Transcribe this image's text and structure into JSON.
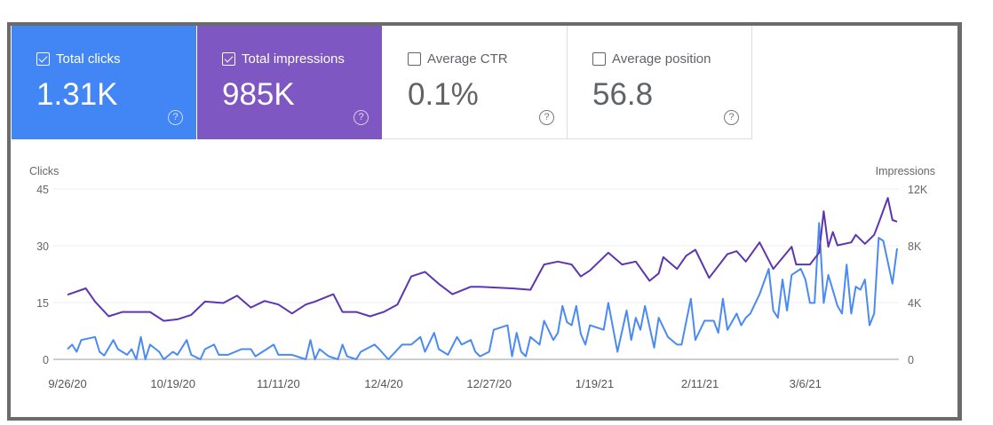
{
  "cards": [
    {
      "label": "Total clicks",
      "value": "1.31K",
      "checked": true,
      "color": "#4285f4"
    },
    {
      "label": "Total impressions",
      "value": "985K",
      "checked": true,
      "color": "#7e57c2"
    },
    {
      "label": "Average CTR",
      "value": "0.1%",
      "checked": false
    },
    {
      "label": "Average position",
      "value": "56.8",
      "checked": false
    }
  ],
  "help_glyph": "?",
  "chart_data": {
    "type": "line",
    "left_axis": {
      "label": "Clicks",
      "ticks": [
        "0",
        "15",
        "30",
        "45"
      ],
      "range": [
        0,
        45
      ]
    },
    "right_axis": {
      "label": "Impressions",
      "ticks": [
        "0",
        "4K",
        "8K",
        "12K"
      ],
      "range": [
        0,
        12000
      ]
    },
    "x_ticks": [
      "9/26/20",
      "10/19/20",
      "11/11/20",
      "12/4/20",
      "12/27/20",
      "1/19/21",
      "2/11/21",
      "3/6/21"
    ],
    "grid": true,
    "series": [
      {
        "axis": "left",
        "color": "#4a8af4",
        "points": [
          [
            "9/26/20",
            2.7
          ],
          [
            "9/27/20",
            3.9
          ],
          [
            "9/28/20",
            2
          ],
          [
            "9/29/20",
            5.1
          ],
          [
            "10/2/20",
            5.9
          ],
          [
            "10/3/20",
            2
          ],
          [
            "10/4/20",
            1
          ],
          [
            "10/6/20",
            5.1
          ],
          [
            "10/7/20",
            2.7
          ],
          [
            "10/9/20",
            1.2
          ],
          [
            "10/10/20",
            2.7
          ],
          [
            "10/11/20",
            0
          ],
          [
            "10/12/20",
            5.9
          ],
          [
            "10/13/20",
            0
          ],
          [
            "10/14/20",
            3.9
          ],
          [
            "10/16/20",
            2
          ],
          [
            "10/17/20",
            0
          ],
          [
            "10/19/20",
            2
          ],
          [
            "10/20/20",
            1.2
          ],
          [
            "10/22/20",
            5.1
          ],
          [
            "10/23/20",
            1.2
          ],
          [
            "10/25/20",
            0
          ],
          [
            "10/26/20",
            2.7
          ],
          [
            "10/28/20",
            3.9
          ],
          [
            "10/29/20",
            1.2
          ],
          [
            "10/31/20",
            1.2
          ],
          [
            "11/3/20",
            2.7
          ],
          [
            "11/5/20",
            2.7
          ],
          [
            "11/6/20",
            0.8
          ],
          [
            "11/10/20",
            3.9
          ],
          [
            "11/11/20",
            1.2
          ],
          [
            "11/14/20",
            1.2
          ],
          [
            "11/17/20",
            0
          ],
          [
            "11/18/20",
            5.1
          ],
          [
            "11/19/20",
            0
          ],
          [
            "11/20/20",
            2.7
          ],
          [
            "11/22/20",
            0.8
          ],
          [
            "11/24/20",
            0
          ],
          [
            "11/25/20",
            3.9
          ],
          [
            "11/26/20",
            0.8
          ],
          [
            "11/28/20",
            0
          ],
          [
            "11/29/20",
            2
          ],
          [
            "12/2/20",
            3.9
          ],
          [
            "12/3/20",
            2.7
          ],
          [
            "12/5/20",
            0
          ],
          [
            "12/8/20",
            3.9
          ],
          [
            "12/10/20",
            3.9
          ],
          [
            "12/12/20",
            5.9
          ],
          [
            "12/13/20",
            2
          ],
          [
            "12/15/20",
            7
          ],
          [
            "12/16/20",
            2.7
          ],
          [
            "12/18/20",
            1.2
          ],
          [
            "12/20/20",
            5.9
          ],
          [
            "12/21/20",
            3.9
          ],
          [
            "12/23/20",
            5.1
          ],
          [
            "12/24/20",
            2
          ],
          [
            "12/25/20",
            0.8
          ],
          [
            "12/27/20",
            2
          ],
          [
            "12/28/20",
            7.8
          ],
          [
            "12/31/20",
            9
          ],
          [
            "1/1/21",
            0.8
          ],
          [
            "1/2/21",
            7
          ],
          [
            "1/3/21",
            2
          ],
          [
            "1/4/21",
            0.8
          ],
          [
            "1/5/21",
            5.9
          ],
          [
            "1/7/21",
            3.9
          ],
          [
            "1/8/21",
            10.2
          ],
          [
            "1/10/21",
            5.1
          ],
          [
            "1/11/21",
            7
          ],
          [
            "1/12/21",
            14.1
          ],
          [
            "1/13/21",
            9.8
          ],
          [
            "1/14/21",
            9
          ],
          [
            "1/15/21",
            14.1
          ],
          [
            "1/16/21",
            6.7
          ],
          [
            "1/17/21",
            3.9
          ],
          [
            "1/18/21",
            9
          ],
          [
            "1/21/21",
            7.8
          ],
          [
            "1/22/21",
            14.9
          ],
          [
            "1/24/21",
            2
          ],
          [
            "1/26/21",
            12.9
          ],
          [
            "1/27/21",
            5.1
          ],
          [
            "1/28/21",
            11
          ],
          [
            "1/29/21",
            7.8
          ],
          [
            "1/30/21",
            14.1
          ],
          [
            "2/1/21",
            3.1
          ],
          [
            "2/2/21",
            11
          ],
          [
            "2/4/21",
            5.9
          ],
          [
            "2/6/21",
            3.9
          ],
          [
            "2/7/21",
            3.9
          ],
          [
            "2/9/21",
            16
          ],
          [
            "2/10/21",
            5.1
          ],
          [
            "2/12/21",
            10.2
          ],
          [
            "2/14/21",
            10.2
          ],
          [
            "2/15/21",
            7
          ],
          [
            "2/16/21",
            16
          ],
          [
            "2/17/21",
            7.8
          ],
          [
            "2/19/21",
            12.1
          ],
          [
            "2/20/21",
            9
          ],
          [
            "2/21/21",
            11
          ],
          [
            "2/22/21",
            12.1
          ],
          [
            "2/24/21",
            17.2
          ],
          [
            "2/26/21",
            23.9
          ],
          [
            "2/27/21",
            12.9
          ],
          [
            "2/28/21",
            11
          ],
          [
            "3/1/21",
            21.1
          ],
          [
            "3/2/21",
            12.9
          ],
          [
            "3/3/21",
            22.3
          ],
          [
            "3/5/21",
            23.9
          ],
          [
            "3/6/21",
            21.1
          ],
          [
            "3/7/21",
            14.9
          ],
          [
            "3/8/21",
            14.9
          ],
          [
            "3/9/21",
            36
          ],
          [
            "3/10/21",
            14.9
          ],
          [
            "3/11/21",
            22.3
          ],
          [
            "3/13/21",
            14.1
          ],
          [
            "3/14/21",
            12.1
          ],
          [
            "3/15/21",
            25
          ],
          [
            "3/16/21",
            12.1
          ],
          [
            "3/17/21",
            19.2
          ],
          [
            "3/18/21",
            18.4
          ],
          [
            "3/19/21",
            21.1
          ],
          [
            "3/20/21",
            9
          ],
          [
            "3/21/21",
            12.1
          ],
          [
            "3/22/21",
            32.1
          ],
          [
            "3/23/21",
            31.3
          ],
          [
            "3/25/21",
            20
          ],
          [
            "3/26/21",
            29.3
          ]
        ]
      },
      {
        "axis": "right",
        "color": "#5e35b1",
        "points": [
          [
            "9/26/20",
            4550
          ],
          [
            "9/30/20",
            5000
          ],
          [
            "10/2/20",
            4070
          ],
          [
            "10/5/20",
            3030
          ],
          [
            "10/8/20",
            3340
          ],
          [
            "10/11/20",
            3340
          ],
          [
            "10/14/20",
            3340
          ],
          [
            "10/17/20",
            2710
          ],
          [
            "10/20/20",
            2820
          ],
          [
            "10/23/20",
            3130
          ],
          [
            "10/26/20",
            4070
          ],
          [
            "10/30/20",
            3970
          ],
          [
            "11/2/20",
            4490
          ],
          [
            "11/5/20",
            3650
          ],
          [
            "11/8/20",
            4110
          ],
          [
            "11/11/20",
            3860
          ],
          [
            "11/14/20",
            3230
          ],
          [
            "11/17/20",
            3860
          ],
          [
            "11/19/20",
            4070
          ],
          [
            "11/23/20",
            4590
          ],
          [
            "11/25/20",
            3340
          ],
          [
            "11/28/20",
            3340
          ],
          [
            "12/1/20",
            3030
          ],
          [
            "12/4/20",
            3340
          ],
          [
            "12/7/20",
            3860
          ],
          [
            "12/10/20",
            5840
          ],
          [
            "12/13/20",
            6160
          ],
          [
            "12/16/20",
            5320
          ],
          [
            "12/19/20",
            4590
          ],
          [
            "12/23/20",
            5110
          ],
          [
            "12/25/20",
            5110
          ],
          [
            "1/1/21",
            5000
          ],
          [
            "1/5/21",
            4900
          ],
          [
            "1/8/21",
            6680
          ],
          [
            "1/11/21",
            6890
          ],
          [
            "1/14/21",
            6680
          ],
          [
            "1/16/21",
            5840
          ],
          [
            "1/18/21",
            6260
          ],
          [
            "1/22/21",
            7510
          ],
          [
            "1/25/21",
            6680
          ],
          [
            "1/28/21",
            6890
          ],
          [
            "1/31/21",
            5530
          ],
          [
            "2/2/21",
            6050
          ],
          [
            "2/3/21",
            7200
          ],
          [
            "2/6/21",
            6370
          ],
          [
            "2/8/21",
            7300
          ],
          [
            "2/10/21",
            7720
          ],
          [
            "2/13/21",
            5740
          ],
          [
            "2/17/21",
            7410
          ],
          [
            "2/19/21",
            7620
          ],
          [
            "2/21/21",
            6890
          ],
          [
            "2/24/21",
            8240
          ],
          [
            "2/27/21",
            6370
          ],
          [
            "3/3/21",
            7930
          ],
          [
            "3/4/21",
            6680
          ],
          [
            "3/7/21",
            6680
          ],
          [
            "3/9/21",
            7510
          ],
          [
            "3/10/21",
            10430
          ],
          [
            "3/11/21",
            7930
          ],
          [
            "3/12/21",
            8970
          ],
          [
            "3/13/21",
            8030
          ],
          [
            "3/16/21",
            8240
          ],
          [
            "3/17/21",
            8770
          ],
          [
            "3/19/21",
            8140
          ],
          [
            "3/21/21",
            8770
          ],
          [
            "3/22/21",
            9600
          ],
          [
            "3/24/21",
            11370
          ],
          [
            "3/25/21",
            9810
          ],
          [
            "3/26/21",
            9700
          ]
        ]
      }
    ]
  }
}
